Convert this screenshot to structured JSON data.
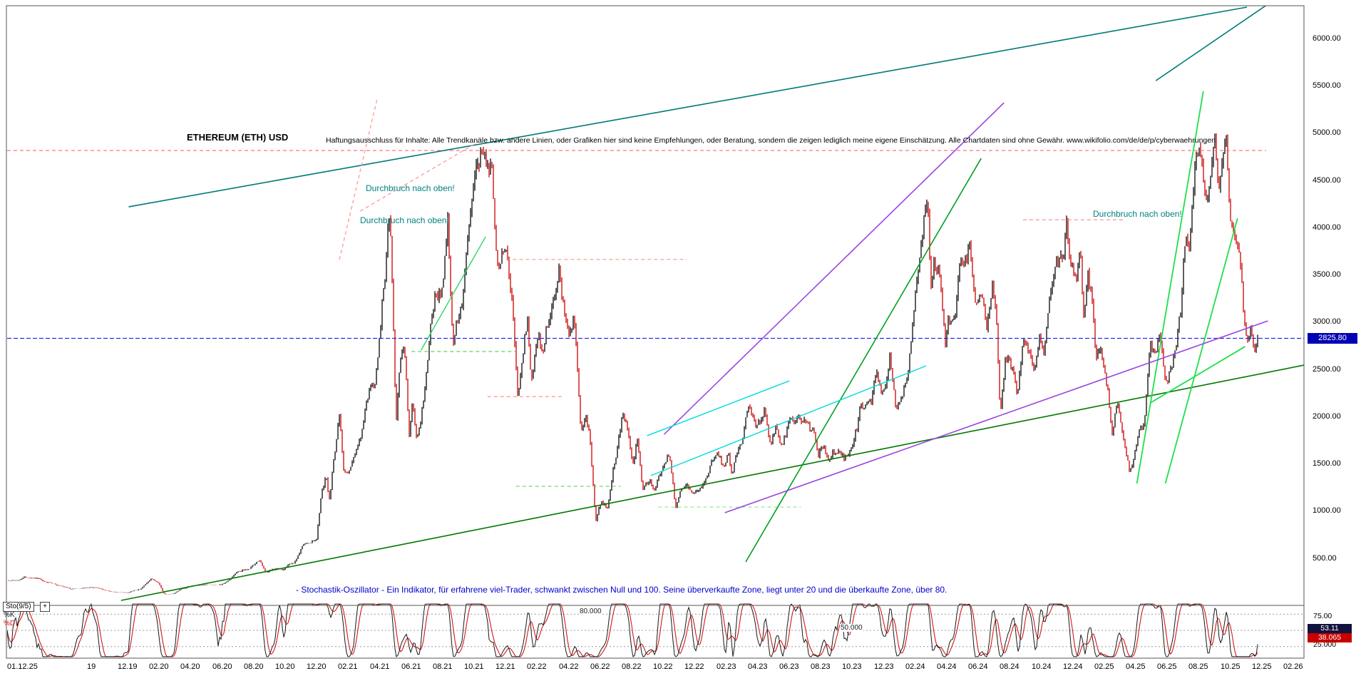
{
  "header": {
    "title": "ETHEREUM (ETH) USD",
    "disclaimer": "Haftungsausschluss für Inhalte: Alle Trendkanäle bzw. andere Linien, oder Grafiken hier sind keine Empfehlungen, oder Beratung, sondern die zeigen lediglich meine eigene Einschätzung. Alle Chartdaten sind ohne Gewähr.  www.wikifolio.com/de/de/p/cyberwaehrungen"
  },
  "colors": {
    "background": "#ffffff",
    "frame": "#555555",
    "candle_up": "#181818",
    "candle_down": "#d01414",
    "current_price_line": "#2020e8",
    "price_badge_bg": "#0000b4",
    "stoch_k": "#181818",
    "stoch_d": "#d01818",
    "k_badge_bg": "#12123e",
    "d_badge_bg": "#c80000",
    "annotation": "#008080",
    "note": "#0000cc",
    "grid_dotted": "#9a9a9a"
  },
  "price_axis": {
    "labels": [
      "6000.00",
      "5500.00",
      "5000.00",
      "4500.00",
      "4000.00",
      "3500.00",
      "3000.00",
      "2500.00",
      "2000.00",
      "1500.00",
      "1000.00",
      "500.00"
    ],
    "current_price_label": "2825.80"
  },
  "x_axis": {
    "labels": [
      "01.12.25",
      "19",
      "12.19",
      "02.20",
      "04.20",
      "06.20",
      "08.20",
      "10.20",
      "12.20",
      "02.21",
      "04.21",
      "06.21",
      "08.21",
      "10.21",
      "12.21",
      "02.22",
      "04.22",
      "06.22",
      "08.22",
      "10.22",
      "12.22",
      "02.23",
      "04.23",
      "06.23",
      "08.23",
      "10.23",
      "12.23",
      "02.24",
      "04.24",
      "06.24",
      "08.24",
      "10.24",
      "12.24",
      "02.25",
      "04.25",
      "06.25",
      "08.25",
      "10.25",
      "12.25",
      "02.26"
    ]
  },
  "oscillator": {
    "indicator_label": "Sto(9/5)",
    "expand_button": "+",
    "k_label": "%K",
    "d_label": "%D",
    "note": "- Stochastik-Oszillator - Ein Indikator, für erfahrene viel-Trader, schwankt zwischen Null und 100. Seine überverkaufte Zone, liegt unter 20 und die überkaufte Zone, über 80.",
    "level_80": "80.000",
    "level_50": "50.000",
    "axis_75": "75.00",
    "axis_25": "25.000",
    "k_value": "53.11",
    "d_value": "38.065"
  },
  "chart_data": {
    "type": "candlestick",
    "title": "ETHEREUM (ETH) USD",
    "x_domain": [
      2019.37,
      2026.2
    ],
    "y_domain": [
      0,
      6345
    ],
    "price_ticks": [
      6000,
      5500,
      5000,
      4500,
      4000,
      3500,
      3000,
      2500,
      2000,
      1500,
      1000,
      500
    ],
    "current_price": 2825.8,
    "close_series": [
      [
        2019.29,
        170
      ],
      [
        2019.33,
        252
      ],
      [
        2019.42,
        268
      ],
      [
        2019.46,
        310
      ],
      [
        2019.5,
        292
      ],
      [
        2019.54,
        290
      ],
      [
        2019.58,
        250
      ],
      [
        2019.63,
        218
      ],
      [
        2019.71,
        172
      ],
      [
        2019.75,
        180
      ],
      [
        2019.83,
        183
      ],
      [
        2019.88,
        160
      ],
      [
        2019.92,
        152
      ],
      [
        2020.0,
        129
      ],
      [
        2020.04,
        155
      ],
      [
        2020.08,
        180
      ],
      [
        2020.13,
        270
      ],
      [
        2020.17,
        223
      ],
      [
        2020.2,
        112
      ],
      [
        2020.25,
        133
      ],
      [
        2020.33,
        206
      ],
      [
        2020.42,
        231
      ],
      [
        2020.5,
        226
      ],
      [
        2020.58,
        346
      ],
      [
        2020.63,
        390
      ],
      [
        2020.67,
        428
      ],
      [
        2020.7,
        470
      ],
      [
        2020.73,
        335
      ],
      [
        2020.75,
        360
      ],
      [
        2020.83,
        386
      ],
      [
        2020.88,
        450
      ],
      [
        2020.92,
        615
      ],
      [
        2021.0,
        737
      ],
      [
        2021.03,
        1250
      ],
      [
        2021.05,
        1380
      ],
      [
        2021.07,
        1080
      ],
      [
        2021.08,
        1314
      ],
      [
        2021.12,
        1960
      ],
      [
        2021.14,
        1450
      ],
      [
        2021.17,
        1418
      ],
      [
        2021.22,
        1700
      ],
      [
        2021.25,
        1919
      ],
      [
        2021.29,
        2350
      ],
      [
        2021.31,
        2250
      ],
      [
        2021.33,
        2772
      ],
      [
        2021.36,
        3500
      ],
      [
        2021.375,
        4170
      ],
      [
        2021.385,
        4357
      ],
      [
        2021.41,
        2400
      ],
      [
        2021.42,
        1900
      ],
      [
        2021.44,
        2706
      ],
      [
        2021.46,
        2900
      ],
      [
        2021.49,
        1800
      ],
      [
        2021.5,
        2274
      ],
      [
        2021.53,
        1750
      ],
      [
        2021.58,
        2531
      ],
      [
        2021.63,
        3300
      ],
      [
        2021.67,
        3429
      ],
      [
        2021.69,
        3950
      ],
      [
        2021.72,
        2750
      ],
      [
        2021.75,
        3000
      ],
      [
        2021.79,
        3600
      ],
      [
        2021.83,
        4288
      ],
      [
        2021.87,
        4866
      ],
      [
        2021.92,
        4631
      ],
      [
        2021.94,
        4050
      ],
      [
        2021.96,
        3700
      ],
      [
        2022.0,
        3682
      ],
      [
        2022.03,
        3400
      ],
      [
        2022.06,
        2300
      ],
      [
        2022.08,
        2684
      ],
      [
        2022.11,
        3100
      ],
      [
        2022.13,
        2350
      ],
      [
        2022.17,
        2919
      ],
      [
        2022.19,
        2600
      ],
      [
        2022.25,
        3283
      ],
      [
        2022.28,
        3520
      ],
      [
        2022.33,
        2730
      ],
      [
        2022.36,
        2950
      ],
      [
        2022.39,
        1800
      ],
      [
        2022.42,
        1942
      ],
      [
        2022.44,
        1750
      ],
      [
        2022.47,
        900
      ],
      [
        2022.5,
        1067
      ],
      [
        2022.53,
        1050
      ],
      [
        2022.58,
        1681
      ],
      [
        2022.61,
        2000
      ],
      [
        2022.67,
        1554
      ],
      [
        2022.69,
        1750
      ],
      [
        2022.72,
        1250
      ],
      [
        2022.75,
        1328
      ],
      [
        2022.78,
        1270
      ],
      [
        2022.83,
        1573
      ],
      [
        2022.86,
        1650
      ],
      [
        2022.89,
        1080
      ],
      [
        2022.92,
        1294
      ],
      [
        2022.95,
        1330
      ],
      [
        2023.0,
        1196
      ],
      [
        2023.03,
        1220
      ],
      [
        2023.08,
        1586
      ],
      [
        2023.11,
        1700
      ],
      [
        2023.14,
        1500
      ],
      [
        2023.17,
        1605
      ],
      [
        2023.19,
        1380
      ],
      [
        2023.25,
        1822
      ],
      [
        2023.28,
        2120
      ],
      [
        2023.31,
        1830
      ],
      [
        2023.33,
        1871
      ],
      [
        2023.36,
        2000
      ],
      [
        2023.39,
        1780
      ],
      [
        2023.42,
        1874
      ],
      [
        2023.45,
        1630
      ],
      [
        2023.5,
        1934
      ],
      [
        2023.53,
        2000
      ],
      [
        2023.58,
        1856
      ],
      [
        2023.61,
        1830
      ],
      [
        2023.64,
        1620
      ],
      [
        2023.67,
        1705
      ],
      [
        2023.7,
        1550
      ],
      [
        2023.75,
        1671
      ],
      [
        2023.78,
        1520
      ],
      [
        2023.83,
        1815
      ],
      [
        2023.87,
        2100
      ],
      [
        2023.92,
        2087
      ],
      [
        2023.95,
        2400
      ],
      [
        2024.0,
        2282
      ],
      [
        2024.02,
        2550
      ],
      [
        2024.05,
        2170
      ],
      [
        2024.08,
        2283
      ],
      [
        2024.11,
        2500
      ],
      [
        2024.14,
        3000
      ],
      [
        2024.17,
        3386
      ],
      [
        2024.2,
        3950
      ],
      [
        2024.22,
        4092
      ],
      [
        2024.24,
        3200
      ],
      [
        2024.25,
        3647
      ],
      [
        2024.28,
        3700
      ],
      [
        2024.31,
        2870
      ],
      [
        2024.33,
        3014
      ],
      [
        2024.36,
        2900
      ],
      [
        2024.39,
        3850
      ],
      [
        2024.42,
        3762
      ],
      [
        2024.44,
        3900
      ],
      [
        2024.47,
        3350
      ],
      [
        2024.5,
        3438
      ],
      [
        2024.53,
        2900
      ],
      [
        2024.56,
        3540
      ],
      [
        2024.58,
        3232
      ],
      [
        2024.6,
        2110
      ],
      [
        2024.63,
        2750
      ],
      [
        2024.67,
        2513
      ],
      [
        2024.69,
        2200
      ],
      [
        2024.72,
        2700
      ],
      [
        2024.75,
        2602
      ],
      [
        2024.78,
        2350
      ],
      [
        2024.81,
        2750
      ],
      [
        2024.83,
        2518
      ],
      [
        2024.86,
        3100
      ],
      [
        2024.89,
        3450
      ],
      [
        2024.92,
        3703
      ],
      [
        2024.95,
        4020
      ],
      [
        2024.97,
        3500
      ],
      [
        2025.0,
        3337
      ],
      [
        2025.02,
        3700
      ],
      [
        2025.04,
        2990
      ],
      [
        2025.06,
        3450
      ],
      [
        2025.08,
        3300
      ],
      [
        2025.11,
        2600
      ],
      [
        2025.13,
        2800
      ],
      [
        2025.17,
        2237
      ],
      [
        2025.19,
        1900
      ],
      [
        2025.22,
        2250
      ],
      [
        2025.25,
        1823
      ],
      [
        2025.28,
        1430
      ],
      [
        2025.31,
        1600
      ],
      [
        2025.33,
        1794
      ],
      [
        2025.36,
        1840
      ],
      [
        2025.39,
        2650
      ],
      [
        2025.42,
        2530
      ],
      [
        2025.44,
        2800
      ],
      [
        2025.47,
        2250
      ],
      [
        2025.5,
        2488
      ],
      [
        2025.52,
        2600
      ],
      [
        2025.55,
        3100
      ],
      [
        2025.57,
        3650
      ],
      [
        2025.58,
        3730
      ],
      [
        2025.6,
        3900
      ],
      [
        2025.62,
        4300
      ],
      [
        2025.63,
        4780
      ],
      [
        2025.645,
        4955
      ],
      [
        2025.67,
        4391
      ],
      [
        2025.69,
        4050
      ],
      [
        2025.71,
        4350
      ],
      [
        2025.73,
        4750
      ],
      [
        2025.75,
        4145
      ],
      [
        2025.77,
        4480
      ],
      [
        2025.79,
        4750
      ],
      [
        2025.81,
        3900
      ],
      [
        2025.83,
        3750
      ],
      [
        2025.86,
        3550
      ],
      [
        2025.88,
        3100
      ],
      [
        2025.9,
        2750
      ],
      [
        2025.92,
        3000
      ],
      [
        2025.94,
        2650
      ],
      [
        2025.96,
        2826
      ]
    ],
    "stochastic": {
      "name": "Sto(9/5)",
      "k": 53.11,
      "d": 38.065,
      "overbought": 80,
      "oversold": 20,
      "levels": [
        80,
        50,
        20
      ],
      "axis_ticks": [
        75,
        25
      ]
    },
    "trend_lines": [
      {
        "name": "teal-channel-upper-line",
        "color": "#007878",
        "width": 1.6,
        "points": [
          [
            2020.01,
            4217
          ],
          [
            2025.9,
            6330
          ]
        ]
      },
      {
        "name": "teal-top-right-line",
        "color": "#007878",
        "width": 1.6,
        "points": [
          [
            2025.42,
            5552
          ],
          [
            2026.13,
            6526
          ]
        ]
      },
      {
        "name": "green-longterm-support-line",
        "color": "#007700",
        "width": 1.6,
        "points": [
          [
            2019.97,
            53
          ],
          [
            2026.2,
            2542
          ]
        ]
      },
      {
        "name": "green-steep-2023-trendline",
        "color": "#00A020",
        "width": 1.6,
        "points": [
          [
            2023.26,
            460
          ],
          [
            2024.5,
            4730
          ]
        ]
      },
      {
        "name": "lime-2025-channel-left-line",
        "color": "#1ee04a",
        "width": 1.8,
        "points": [
          [
            2025.32,
            1290
          ],
          [
            2025.67,
            5440
          ]
        ]
      },
      {
        "name": "lime-2025-channel-right-line",
        "color": "#1ee04a",
        "width": 1.8,
        "points": [
          [
            2025.47,
            1290
          ],
          [
            2025.85,
            4096
          ]
        ]
      },
      {
        "name": "lime-2025-minor-line",
        "color": "#1ee04a",
        "width": 1.8,
        "points": [
          [
            2025.39,
            2142
          ],
          [
            2025.89,
            2739
          ]
        ]
      },
      {
        "name": "lime-2021-trendline",
        "color": "#35d06a",
        "width": 1.4,
        "points": [
          [
            2021.55,
            2700
          ],
          [
            2021.89,
            3900
          ]
        ]
      },
      {
        "name": "purple-steep-channel-line",
        "color": "#9a45e0",
        "width": 1.6,
        "points": [
          [
            2022.83,
            1810
          ],
          [
            2024.62,
            5318
          ]
        ]
      },
      {
        "name": "purple-long-support-line",
        "color": "#9a45e0",
        "width": 1.6,
        "points": [
          [
            2023.15,
            981
          ],
          [
            2026.01,
            3010
          ]
        ]
      },
      {
        "name": "cyan-minor-upper-line",
        "color": "#00dcdc",
        "width": 1.4,
        "points": [
          [
            2022.74,
            1795
          ],
          [
            2023.49,
            2376
          ]
        ]
      },
      {
        "name": "cyan-minor-lower-line",
        "color": "#00dcdc",
        "width": 1.4,
        "points": [
          [
            2022.76,
            1373
          ],
          [
            2024.21,
            2535
          ]
        ]
      },
      {
        "name": "pink-dashed-tops-line",
        "color": "#ff9898",
        "width": 1.3,
        "dash": "5 4",
        "points": [
          [
            2021.23,
            4172
          ],
          [
            2021.85,
            4903
          ]
        ]
      },
      {
        "name": "pink-dashed-may-rally-line",
        "color": "#ff9898",
        "width": 1.3,
        "dash": "5 4",
        "points": [
          [
            2021.12,
            3659
          ],
          [
            2021.32,
            5371
          ]
        ]
      }
    ],
    "h_levels": [
      {
        "name": "ath-resistance-line",
        "p": 4813,
        "t": [
          2019.37,
          2026.0
        ],
        "color": "#ff6a6a",
        "dash": "5 4",
        "width": 1.1
      },
      {
        "name": "resistance-4080-line",
        "p": 4080,
        "t": [
          2024.72,
          2025.26
        ],
        "color": "#ff8585",
        "dash": "5 4",
        "width": 1.1
      },
      {
        "name": "resistance-3660-line",
        "p": 3660,
        "t": [
          2022.0,
          2022.95
        ],
        "color": "#ff8585",
        "dash": "5 4",
        "width": 1.1
      },
      {
        "name": "resistance-2210-line",
        "p": 2210,
        "t": [
          2021.9,
          2022.3
        ],
        "color": "#ff8585",
        "dash": "5 4",
        "width": 1.1
      },
      {
        "name": "support-2686-line",
        "p": 2686,
        "t": [
          2021.5,
          2022.05
        ],
        "color": "#4ad04a",
        "dash": "5 4",
        "width": 1.1
      },
      {
        "name": "support-1260-line",
        "p": 1260,
        "t": [
          2022.05,
          2022.6
        ],
        "color": "#4ad04a",
        "dash": "5 4",
        "width": 1.1
      },
      {
        "name": "support-1041-line",
        "p": 1041,
        "t": [
          2022.8,
          2023.55
        ],
        "color": "#8ae88a",
        "dash": "5 4",
        "width": 1.1
      },
      {
        "name": "current-price-line",
        "p": 2825.8,
        "t": [
          2019.37,
          2026.2
        ],
        "color": "#2020e8",
        "dash": "6 3",
        "width": 1.2
      }
    ],
    "annotations": [
      {
        "text": "Durchbruch nach oben!",
        "t": 2021.26,
        "p": 4421
      },
      {
        "text": "Durchbruch nach oben!",
        "t": 2021.23,
        "p": 4081
      },
      {
        "text": "Durchbruch nach oben!",
        "t": 2025.09,
        "p": 4149
      }
    ]
  }
}
